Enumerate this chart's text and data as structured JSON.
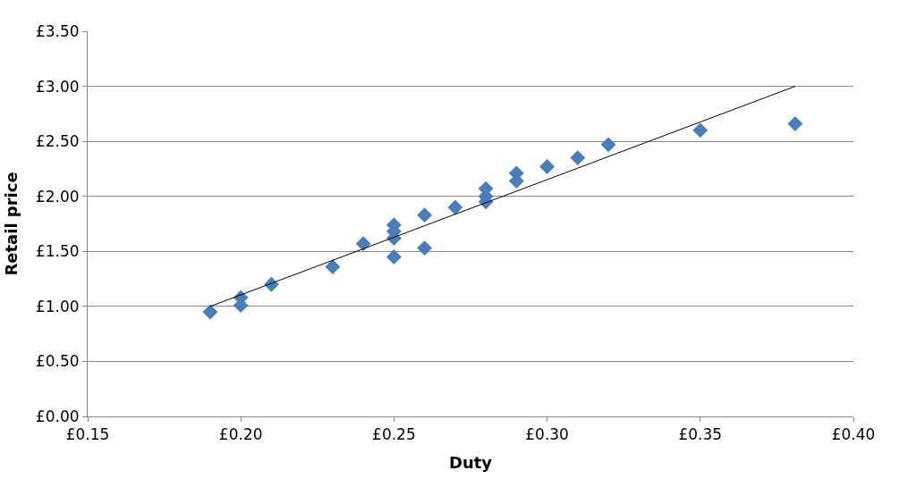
{
  "chart_data": {
    "type": "scatter",
    "xlabel": "Duty",
    "ylabel": "Retail price",
    "xlim": [
      0.15,
      0.4
    ],
    "xticks": [
      {
        "value": 0.15,
        "label": "£0.15"
      },
      {
        "value": 0.2,
        "label": "£0.20"
      },
      {
        "value": 0.25,
        "label": "£0.25"
      },
      {
        "value": 0.3,
        "label": "£0.30"
      },
      {
        "value": 0.35,
        "label": "£0.35"
      },
      {
        "value": 0.4,
        "label": "£0.40"
      }
    ],
    "ylim": [
      0,
      3.5
    ],
    "yticks": [
      {
        "value": 0,
        "label": "£0.00"
      },
      {
        "value": 0.5,
        "label": "£0.50"
      },
      {
        "value": 1,
        "label": "£1.00"
      },
      {
        "value": 1.5,
        "label": "£1.50"
      },
      {
        "value": 2,
        "label": "£2.00"
      },
      {
        "value": 2.5,
        "label": "£2.50"
      },
      {
        "value": 3,
        "label": "£3.00"
      },
      {
        "value": 3.5,
        "label": "£3.50"
      }
    ],
    "grid": "y",
    "legend": false,
    "series": [
      {
        "marker": "diamond",
        "color": "#4a7ebb",
        "x": [
          0.19,
          0.2,
          0.2,
          0.21,
          0.23,
          0.24,
          0.25,
          0.25,
          0.25,
          0.25,
          0.26,
          0.26,
          0.27,
          0.28,
          0.28,
          0.28,
          0.29,
          0.29,
          0.3,
          0.31,
          0.32,
          0.35,
          0.381
        ],
        "values": [
          0.95,
          1.08,
          1.01,
          1.2,
          1.36,
          1.57,
          1.74,
          1.68,
          1.62,
          1.45,
          1.83,
          1.53,
          1.9,
          2.07,
          2.0,
          1.95,
          2.21,
          2.14,
          2.27,
          2.35,
          2.47,
          2.6,
          2.66
        ]
      },
      {
        "type": "line",
        "marker": "none",
        "color": "#000000",
        "x": [
          0.19,
          0.381
        ],
        "values": [
          1.0,
          3.0
        ]
      }
    ]
  }
}
